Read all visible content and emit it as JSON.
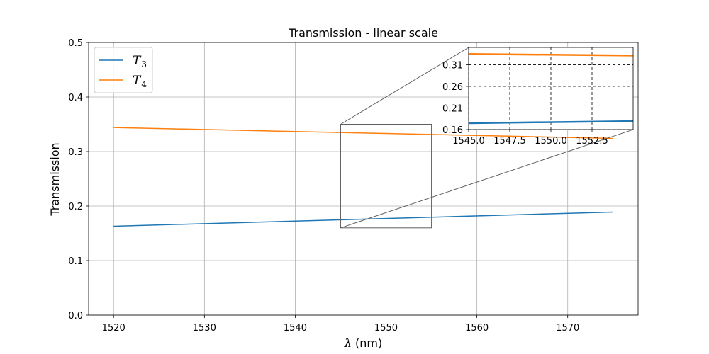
{
  "chart_data": {
    "type": "line",
    "title": "Transmission - linear scale",
    "xlabel_symbol": "λ",
    "xlabel_unit": " (nm)",
    "ylabel": "Transmission",
    "xlim": [
      1517.25,
      1577.75
    ],
    "ylim": [
      0.0,
      0.5
    ],
    "xticks": [
      1520,
      1530,
      1540,
      1550,
      1560,
      1570
    ],
    "yticks": [
      0.0,
      0.1,
      0.2,
      0.3,
      0.4,
      0.5
    ],
    "ytick_labels": [
      "0.0",
      "0.1",
      "0.2",
      "0.3",
      "0.4",
      "0.5"
    ],
    "grid": true,
    "legend_placement": "upper-left",
    "series": [
      {
        "name": "T3",
        "label_main": "T",
        "label_sub": "3",
        "color": "#1f77b4",
        "x": [
          1520,
          1575
        ],
        "y": [
          0.163,
          0.189
        ]
      },
      {
        "name": "T4",
        "label_main": "T",
        "label_sub": "4",
        "color": "#ff7f0e",
        "x": [
          1520,
          1575
        ],
        "y": [
          0.344,
          0.324
        ]
      }
    ],
    "zoom_box": {
      "xlim": [
        1545,
        1555
      ],
      "ylim": [
        0.16,
        0.35
      ]
    },
    "inset": {
      "xlim": [
        1545,
        1555
      ],
      "ylim": [
        0.16,
        0.35
      ],
      "xticks": [
        1545.0,
        1547.5,
        1550.0,
        1552.5
      ],
      "xtick_labels": [
        "1545.0",
        "1547.5",
        "1550.0",
        "1552.5"
      ],
      "yticks": [
        0.16,
        0.21,
        0.26,
        0.31
      ],
      "ytick_labels": [
        "0.16",
        "0.21",
        "0.26",
        "0.31"
      ],
      "grid": "dashed"
    }
  }
}
